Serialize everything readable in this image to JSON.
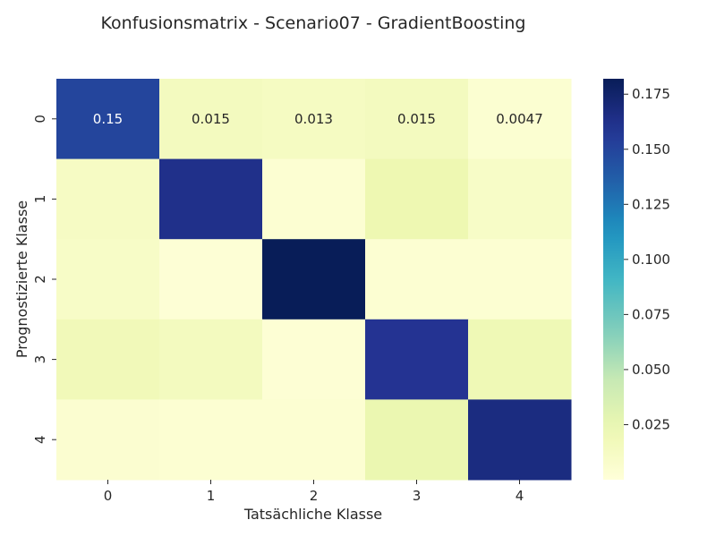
{
  "chart_data": {
    "type": "heatmap",
    "title": "Konfusionsmatrix - Scenario07 - GradientBoosting",
    "xlabel": "Tatsächliche Klasse",
    "ylabel": "Prognostizierte Klasse",
    "x_categories": [
      "0",
      "1",
      "2",
      "3",
      "4"
    ],
    "y_categories": [
      "0",
      "1",
      "2",
      "3",
      "4"
    ],
    "values": [
      [
        0.15,
        0.015,
        0.013,
        0.015,
        0.0047
      ],
      [
        0.012,
        0.163,
        0.004,
        0.022,
        0.01
      ],
      [
        0.01,
        0.002,
        0.182,
        0.004,
        0.004
      ],
      [
        0.018,
        0.015,
        0.003,
        0.16,
        0.02
      ],
      [
        0.005,
        0.004,
        0.004,
        0.024,
        0.167
      ]
    ],
    "annotations": [
      [
        "0.15",
        "0.015",
        "0.013",
        "0.015",
        "0.0047"
      ],
      [
        "",
        "",
        "",
        "",
        ""
      ],
      [
        "",
        "",
        "",
        "",
        ""
      ],
      [
        "",
        "",
        "",
        "",
        ""
      ],
      [
        "",
        "",
        "",
        "",
        ""
      ]
    ],
    "colormap": "YlGnBu",
    "vmin": 0.0,
    "vmax": 0.182,
    "colorbar_ticks": [
      0.025,
      0.05,
      0.075,
      0.1,
      0.125,
      0.15,
      0.175
    ],
    "colorbar_tick_labels": [
      "0.025",
      "0.050",
      "0.075",
      "0.100",
      "0.125",
      "0.150",
      "0.175"
    ],
    "grid": false
  }
}
